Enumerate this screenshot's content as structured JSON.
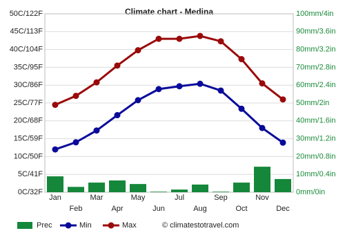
{
  "chart_data": {
    "type": "combo",
    "title": "Climate chart - Medina",
    "categories": [
      "Jan",
      "Feb",
      "Mar",
      "Apr",
      "May",
      "Jun",
      "Jul",
      "Aug",
      "Sep",
      "Oct",
      "Nov",
      "Dec"
    ],
    "series": [
      {
        "name": "Prec",
        "type": "bar",
        "axis": "y2",
        "color": "#15873a",
        "values": [
          8.9,
          3,
          5.4,
          6.6,
          4.6,
          0.3,
          1.5,
          4.3,
          0.3,
          5.4,
          14.3,
          7.4
        ]
      },
      {
        "name": "Min",
        "type": "line",
        "color": "#0a0a9a",
        "values": [
          12,
          14,
          17.3,
          21.6,
          25.8,
          28.9,
          29.7,
          30.4,
          28.5,
          23.4,
          18,
          13.9
        ]
      },
      {
        "name": "Max",
        "type": "line",
        "color": "#9a0a0a",
        "values": [
          24.5,
          27,
          30.8,
          35.5,
          39.8,
          43,
          43,
          43.8,
          42.3,
          37.3,
          30.5,
          26
        ]
      }
    ],
    "ylim": [
      0,
      50
    ],
    "yticks": [
      {
        "value": 0,
        "label": "0C/32F"
      },
      {
        "value": 5,
        "label": "5C/41F"
      },
      {
        "value": 10,
        "label": "10C/50F"
      },
      {
        "value": 15,
        "label": "15C/59F"
      },
      {
        "value": 20,
        "label": "20C/68F"
      },
      {
        "value": 25,
        "label": "25C/77F"
      },
      {
        "value": 30,
        "label": "30C/86F"
      },
      {
        "value": 35,
        "label": "35C/95F"
      },
      {
        "value": 40,
        "label": "40C/104F"
      },
      {
        "value": 45,
        "label": "45C/113F"
      },
      {
        "value": 50,
        "label": "50C/122F"
      }
    ],
    "y2lim": [
      0,
      100
    ],
    "y2ticks": [
      {
        "value": 0,
        "label": "0mm/0in"
      },
      {
        "value": 10,
        "label": "10mm/0.4in"
      },
      {
        "value": 20,
        "label": "20mm/0.8in"
      },
      {
        "value": 30,
        "label": "30mm/1.2in"
      },
      {
        "value": 40,
        "label": "40mm/1.6in"
      },
      {
        "value": 50,
        "label": "50mm/2in"
      },
      {
        "value": 60,
        "label": "60mm/2.4in"
      },
      {
        "value": 70,
        "label": "70mm/2.8in"
      },
      {
        "value": 80,
        "label": "80mm/3.2in"
      },
      {
        "value": 90,
        "label": "90mm/3.6in"
      },
      {
        "value": 100,
        "label": "100mm/4in"
      }
    ],
    "grid": true,
    "legend": "bottom",
    "credit": "© climatestotravel.com"
  }
}
